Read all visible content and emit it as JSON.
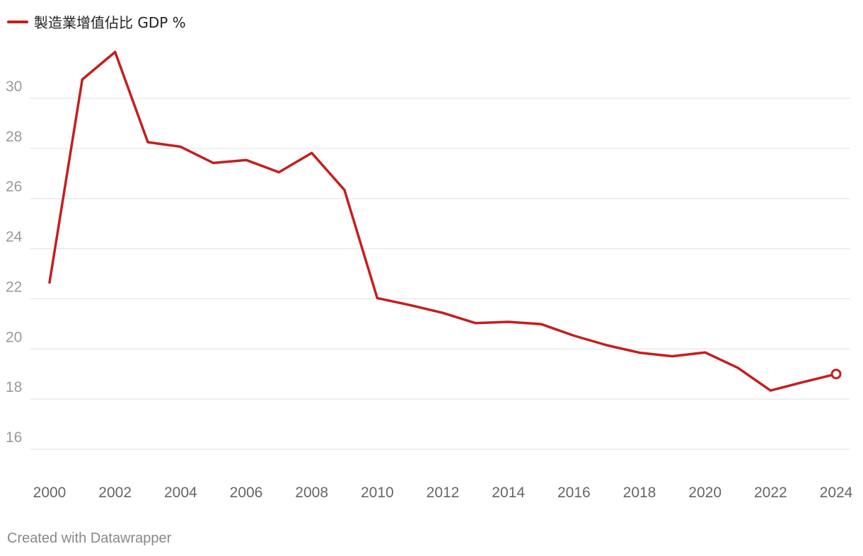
{
  "chart_data": {
    "type": "line",
    "title": "",
    "xlabel": "",
    "ylabel": "",
    "x": [
      2000,
      2001,
      2002,
      2003,
      2004,
      2005,
      2006,
      2007,
      2008,
      2009,
      2010,
      2011,
      2012,
      2013,
      2014,
      2015,
      2016,
      2017,
      2018,
      2019,
      2020,
      2021,
      2022,
      2023,
      2024
    ],
    "series": [
      {
        "name": "製造業增值佔比 GDP %",
        "color": "#c41e1e",
        "values": [
          22.65,
          30.75,
          31.85,
          28.25,
          28.07,
          27.42,
          27.54,
          27.05,
          27.82,
          26.34,
          22.03,
          21.75,
          21.44,
          21.03,
          21.08,
          20.99,
          20.53,
          20.15,
          19.85,
          19.71,
          19.86,
          19.25,
          18.34,
          18.68,
          19.0
        ]
      }
    ],
    "xticks": [
      "2000",
      "2002",
      "2004",
      "2006",
      "2008",
      "2010",
      "2012",
      "2014",
      "2016",
      "2018",
      "2020",
      "2022",
      "2024"
    ],
    "yticks": [
      "16",
      "18",
      "20",
      "22",
      "24",
      "26",
      "28",
      "30"
    ],
    "xlim": [
      2000,
      2024
    ],
    "ylim": [
      15.2,
      32.3
    ],
    "grid": true,
    "legend_position": "top-left",
    "end_marker": "hollow-circle"
  },
  "credit": "Created with Datawrapper"
}
